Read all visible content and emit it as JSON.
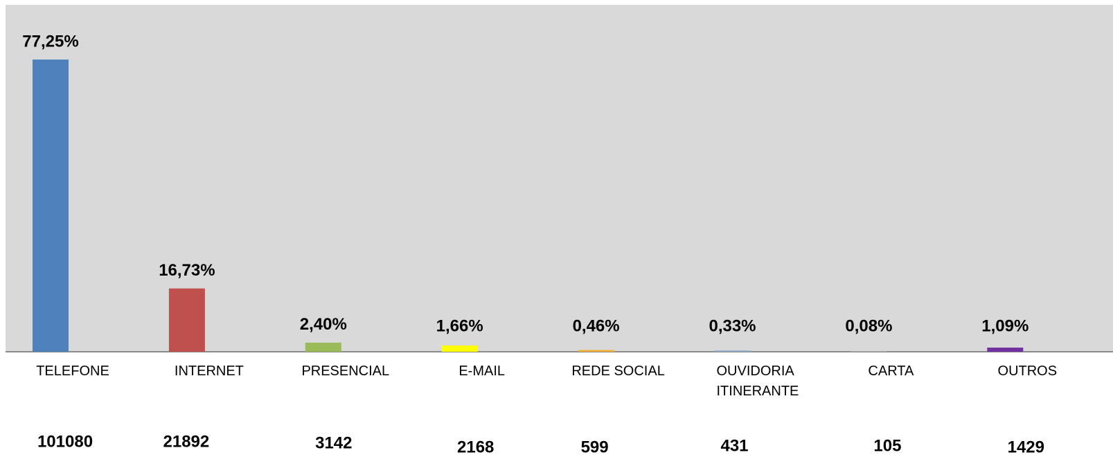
{
  "chart_data": {
    "type": "bar",
    "categories": [
      "TELEFONE",
      "INTERNET",
      "PRESENCIAL",
      "E-MAIL",
      "REDE SOCIAL",
      "OUVIDORIA ITINERANTE",
      "CARTA",
      "OUTROS"
    ],
    "values": [
      77.25,
      16.73,
      2.4,
      1.66,
      0.46,
      0.33,
      0.08,
      1.09
    ],
    "value_labels": [
      "77,25%",
      "16,73%",
      "2,40%",
      "1,66%",
      "0,46%",
      "0,33%",
      "0,08%",
      "1,09%"
    ],
    "counts": [
      101080,
      21892,
      3142,
      2168,
      599,
      431,
      105,
      1429
    ],
    "colors": [
      "#4f81bd",
      "#c0504d",
      "#9bbb59",
      "#ffff00",
      "#f2b134",
      "#8eaacb",
      "#c9c9c9",
      "#7030a0"
    ]
  }
}
